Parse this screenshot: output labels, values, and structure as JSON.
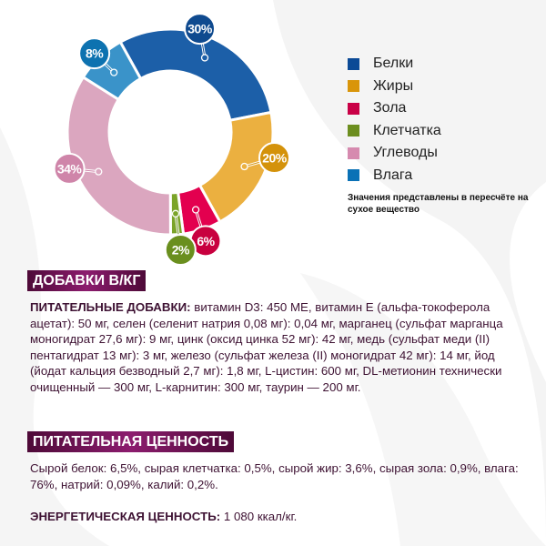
{
  "chart_data": {
    "type": "pie",
    "variant": "donut",
    "categories": [
      "Белки",
      "Жиры",
      "Зола",
      "Клетчатка",
      "Углеводы",
      "Влага"
    ],
    "values": [
      30,
      20,
      6,
      2,
      34,
      8
    ],
    "data_labels": [
      "30%",
      "20%",
      "6%",
      "2%",
      "34%",
      "8%"
    ],
    "colors": [
      "#1c5fa8",
      "#ebb040",
      "#e3004f",
      "#7ba429",
      "#dba6bf",
      "#3a93c9"
    ],
    "label_colors": [
      "#0f4a8f",
      "#d4920a",
      "#c8003f",
      "#6a8f1e",
      "#cf85a9",
      "#0d72b0"
    ],
    "legend_colors": [
      "#0b4a96",
      "#d9950a",
      "#c90046",
      "#6c8e1f",
      "#d68aaf",
      "#0a71b6"
    ],
    "legend_placement": "right",
    "note": "Значения представлены в пересчёте на сухое вещество"
  },
  "supplements": {
    "title": "ДОБАВКИ В/КГ",
    "lead": "ПИТАТЕЛЬНЫЕ ДОБАВКИ:",
    "text": " витамин D3: 450 МЕ, витамин Е (альфа-токоферола ацетат): 50 мг, селен (селенит натрия 0,08 мг): 0,04 мг, марганец (сульфат мар­ганца моногидрат 27,6 мг): 9 мг, цинк (оксид цинка 52 мг): 42 мг, медь (суль­фат меди (II) пентагидрат 13 мг): 3 мг, железо (сульфат железа (II) моногидрат 42 мг): 14 мг, йод (йодат кальция безводный 2,7 мг): 1,8 мг, L-цистин: 600 мг, DL-метионин технически очищенный — 300 мг, L-карнитин: 300 мг, таурин — 200 мг."
  },
  "nutrition": {
    "title": "ПИТАТЕЛЬНАЯ ЦЕННОСТЬ",
    "text": "Сырой белок: 6,5%, сырая клетчатка: 0,5%, сырой жир: 3,6%, сырая зола: 0,9%, влага: 76%, натрий: 0,09%, калий: 0,2%.",
    "energy_lead": "ЭНЕРГЕТИЧЕСКАЯ ЦЕННОСТЬ:",
    "energy_value": " 1 080 ккал/кг."
  }
}
